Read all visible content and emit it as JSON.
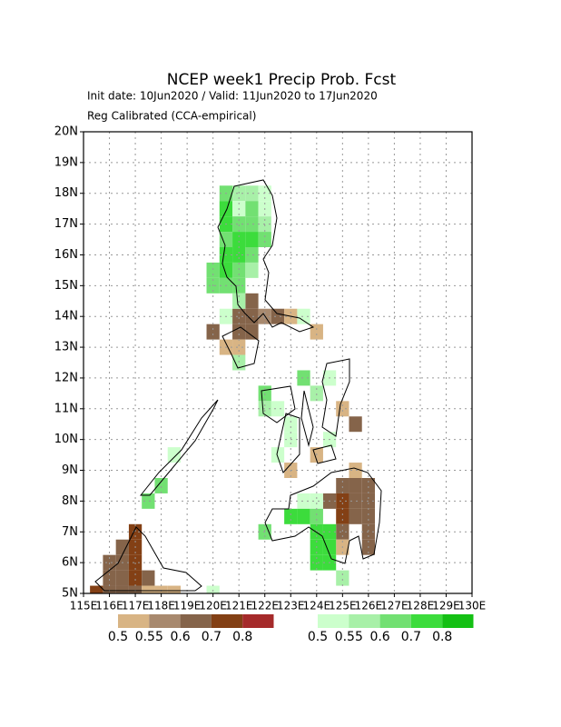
{
  "chart_data": {
    "type": "grid_map",
    "title": "NCEP week1 Precip Prob. Fcst",
    "subtitle": "Init date: 10Jun2020 / Valid: 11Jun2020 to 17Jun2020",
    "note": "Reg Calibrated (CCA-empirical)",
    "xlim": [
      115,
      130
    ],
    "ylim": [
      5,
      20
    ],
    "xticks": [
      {
        "value": 115,
        "label": "115E"
      },
      {
        "value": 116,
        "label": "116E"
      },
      {
        "value": 117,
        "label": "117E"
      },
      {
        "value": 118,
        "label": "118E"
      },
      {
        "value": 119,
        "label": "119E"
      },
      {
        "value": 120,
        "label": "120E"
      },
      {
        "value": 121,
        "label": "121E"
      },
      {
        "value": 122,
        "label": "122E"
      },
      {
        "value": 123,
        "label": "123E"
      },
      {
        "value": 124,
        "label": "124E"
      },
      {
        "value": 125,
        "label": "125E"
      },
      {
        "value": 126,
        "label": "126E"
      },
      {
        "value": 127,
        "label": "127E"
      },
      {
        "value": 128,
        "label": "128E"
      },
      {
        "value": 129,
        "label": "129E"
      },
      {
        "value": 130,
        "label": "130E"
      }
    ],
    "yticks": [
      {
        "value": 5,
        "label": "5N"
      },
      {
        "value": 6,
        "label": "6N"
      },
      {
        "value": 7,
        "label": "7N"
      },
      {
        "value": 8,
        "label": "8N"
      },
      {
        "value": 9,
        "label": "9N"
      },
      {
        "value": 10,
        "label": "10N"
      },
      {
        "value": 11,
        "label": "11N"
      },
      {
        "value": 12,
        "label": "12N"
      },
      {
        "value": 13,
        "label": "13N"
      },
      {
        "value": 14,
        "label": "14N"
      },
      {
        "value": 15,
        "label": "15N"
      },
      {
        "value": 16,
        "label": "16N"
      },
      {
        "value": 17,
        "label": "17N"
      },
      {
        "value": 18,
        "label": "18N"
      },
      {
        "value": 19,
        "label": "19N"
      },
      {
        "value": 20,
        "label": "20N"
      }
    ],
    "grid": true,
    "series": [
      {
        "levels": [
          0.5,
          0.55,
          0.6,
          0.7,
          0.8
        ],
        "colors": [
          "#d8b484",
          "#a8896e",
          "#85644a",
          "#834015",
          "#a52a2a"
        ],
        "cells": [
          [
            121.5,
            14.5,
            0.65
          ],
          [
            121,
            14,
            0.6
          ],
          [
            121.5,
            14,
            0.65
          ],
          [
            122,
            14,
            0.55
          ],
          [
            122.5,
            14,
            0.65
          ],
          [
            123,
            14,
            0.52
          ],
          [
            120,
            13.5,
            0.6
          ],
          [
            121,
            13.5,
            0.65
          ],
          [
            121.5,
            13.5,
            0.65
          ],
          [
            120.5,
            13,
            0.52
          ],
          [
            121,
            13,
            0.52
          ],
          [
            124,
            13.5,
            0.52
          ],
          [
            124,
            9.5,
            0.52
          ],
          [
            123,
            9,
            0.52
          ],
          [
            125,
            11,
            0.52
          ],
          [
            125.5,
            10.5,
            0.6
          ],
          [
            125.5,
            9,
            0.52
          ],
          [
            125,
            8.5,
            0.6
          ],
          [
            125.5,
            8.5,
            0.6
          ],
          [
            126,
            8.5,
            0.6
          ],
          [
            124.5,
            8,
            0.65
          ],
          [
            125,
            8,
            0.75
          ],
          [
            125.5,
            8,
            0.6
          ],
          [
            126,
            8,
            0.6
          ],
          [
            125,
            7.5,
            0.75
          ],
          [
            125.5,
            7.5,
            0.6
          ],
          [
            126,
            7.5,
            0.6
          ],
          [
            125,
            7,
            0.6
          ],
          [
            126,
            7,
            0.6
          ],
          [
            125,
            6.5,
            0.52
          ],
          [
            126,
            6.5,
            0.6
          ],
          [
            117,
            7,
            0.75
          ],
          [
            116.5,
            6.5,
            0.6
          ],
          [
            117,
            6.5,
            0.75
          ],
          [
            116,
            6,
            0.6
          ],
          [
            116.5,
            6,
            0.6
          ],
          [
            117,
            6,
            0.75
          ],
          [
            116,
            5.5,
            0.6
          ],
          [
            116.5,
            5.5,
            0.6
          ],
          [
            117,
            5.5,
            0.75
          ],
          [
            117.5,
            5.5,
            0.6
          ],
          [
            115.5,
            5,
            0.75
          ],
          [
            116,
            5,
            0.6
          ],
          [
            116.5,
            5,
            0.6
          ],
          [
            117,
            5,
            0.6
          ],
          [
            117.5,
            5,
            0.52
          ],
          [
            118,
            5,
            0.52
          ],
          [
            118.5,
            5,
            0.52
          ]
        ]
      },
      {
        "levels": [
          0.5,
          0.55,
          0.6,
          0.7,
          0.8
        ],
        "colors": [
          "#ccffcc",
          "#a8f0a8",
          "#72e072",
          "#3cdc3c",
          "#14c014"
        ],
        "cells": [
          [
            120.5,
            18,
            0.65
          ],
          [
            121,
            18,
            0.57
          ],
          [
            121.5,
            18,
            0.57
          ],
          [
            122,
            18,
            0.52
          ],
          [
            120.5,
            17.5,
            0.75
          ],
          [
            121,
            17.5,
            0.52
          ],
          [
            121.5,
            17.5,
            0.65
          ],
          [
            122,
            17.5,
            0.52
          ],
          [
            120.5,
            17,
            0.75
          ],
          [
            121,
            17,
            0.65
          ],
          [
            121.5,
            17,
            0.65
          ],
          [
            122,
            17,
            0.57
          ],
          [
            120.5,
            16.5,
            0.65
          ],
          [
            121,
            16.5,
            0.75
          ],
          [
            121.5,
            16.5,
            0.75
          ],
          [
            122,
            16.5,
            0.65
          ],
          [
            120.5,
            16,
            0.75
          ],
          [
            121,
            16,
            0.75
          ],
          [
            121.5,
            16,
            0.65
          ],
          [
            120,
            15.5,
            0.65
          ],
          [
            120.5,
            15.5,
            0.75
          ],
          [
            121,
            15.5,
            0.65
          ],
          [
            121.5,
            15.5,
            0.57
          ],
          [
            120,
            15,
            0.65
          ],
          [
            120.5,
            15,
            0.65
          ],
          [
            121,
            15,
            0.65
          ],
          [
            121,
            14.5,
            0.57
          ],
          [
            120.5,
            14,
            0.52
          ],
          [
            123.5,
            14,
            0.52
          ],
          [
            121,
            12.5,
            0.57
          ],
          [
            122,
            11.5,
            0.65
          ],
          [
            122,
            11,
            0.57
          ],
          [
            122.5,
            11,
            0.52
          ],
          [
            123,
            10.5,
            0.52
          ],
          [
            123,
            10,
            0.52
          ],
          [
            122.5,
            9.5,
            0.52
          ],
          [
            123.5,
            12,
            0.65
          ],
          [
            124.5,
            12,
            0.52
          ],
          [
            124,
            11.5,
            0.57
          ],
          [
            124.5,
            10,
            0.52
          ],
          [
            123.5,
            8,
            0.52
          ],
          [
            124,
            8,
            0.52
          ],
          [
            123,
            7.5,
            0.75
          ],
          [
            123.5,
            7.5,
            0.75
          ],
          [
            124,
            7.5,
            0.65
          ],
          [
            122,
            7,
            0.65
          ],
          [
            124,
            7,
            0.75
          ],
          [
            124.5,
            7,
            0.75
          ],
          [
            124,
            6.5,
            0.75
          ],
          [
            124.5,
            6.5,
            0.75
          ],
          [
            124,
            6,
            0.75
          ],
          [
            124.5,
            6,
            0.75
          ],
          [
            125,
            5.5,
            0.57
          ],
          [
            117.5,
            8,
            0.65
          ],
          [
            118,
            8.5,
            0.65
          ],
          [
            118.5,
            9.5,
            0.52
          ],
          [
            120,
            5,
            0.52
          ]
        ]
      }
    ]
  }
}
